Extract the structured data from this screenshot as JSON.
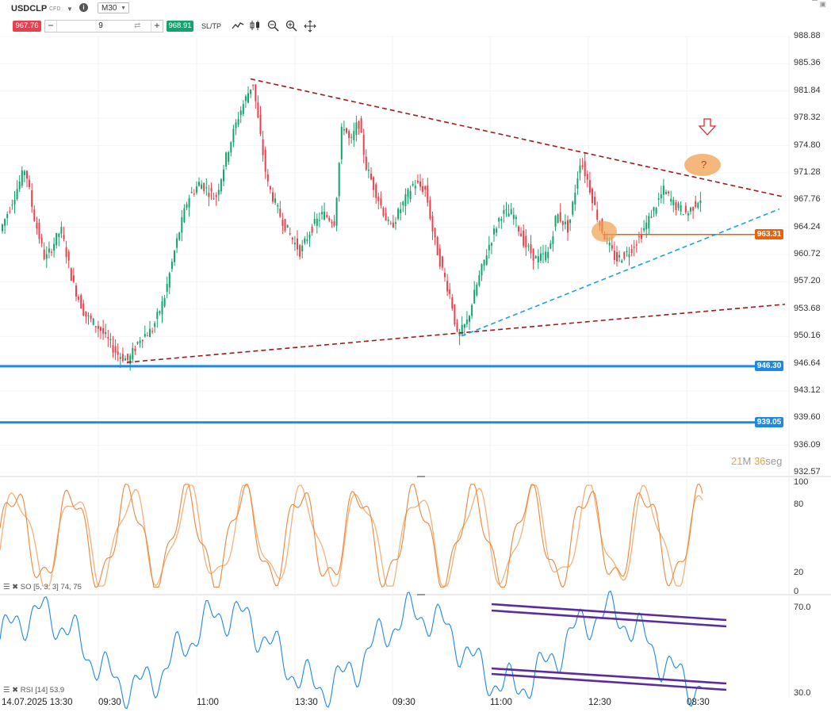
{
  "header": {
    "symbol": "USDCLP",
    "instrument_type": "CFD",
    "timeframe": "M30",
    "sell_price": "967.76",
    "buy_price": "968.91",
    "quantity": "9",
    "minus_label": "−",
    "plus_label": "+",
    "sltp_label": "SL/TP",
    "tools": [
      "line-chart-icon",
      "candles-icon",
      "zoom-out-icon",
      "zoom-in-icon",
      "crosshair-icon"
    ]
  },
  "window_controls": [
    "minimize-icon",
    "maximize-icon"
  ],
  "price_axis": {
    "ticks": [
      "988.88",
      "985.36",
      "981.84",
      "978.32",
      "974.80",
      "971.28",
      "967.76",
      "964.24",
      "960.72",
      "957.20",
      "953.68",
      "950.16",
      "946.64",
      "943.12",
      "939.60",
      "936.09",
      "932.57"
    ],
    "min": 932.57,
    "max": 988.88
  },
  "horizontal_levels": [
    {
      "value": "963.31",
      "color": "#e8620c"
    },
    {
      "value": "946.30",
      "color": "#1e88e5"
    },
    {
      "value": "939.05",
      "color": "#1e88e5"
    }
  ],
  "annotation": {
    "question_mark": "?"
  },
  "timer": {
    "minutes": "21",
    "minutes_unit": "M",
    "seconds": "36",
    "seconds_unit": "seg"
  },
  "stochastic": {
    "legend": "SO [5, 3, 3] 74, 75",
    "ticks": [
      "100",
      "80",
      "20",
      "0"
    ]
  },
  "rsi": {
    "legend": "RSI [14] 53.9",
    "ticks": [
      "70.0",
      "30.0"
    ]
  },
  "time_axis": {
    "labels": [
      "14.07.2025 13:30",
      "09:30",
      "11:00",
      "13:30",
      "09:30",
      "11:00",
      "12:30",
      "08:30"
    ]
  },
  "colors": {
    "up_candle": "#14a36d",
    "down_candle": "#e8414d",
    "trendline_red": "#a01a1a",
    "trendline_blue": "#1aa3d9",
    "so_fast": "#e8883a",
    "so_slow": "#f2b27a",
    "rsi_line": "#1e88e5",
    "channel": "#5a2ca0"
  }
}
